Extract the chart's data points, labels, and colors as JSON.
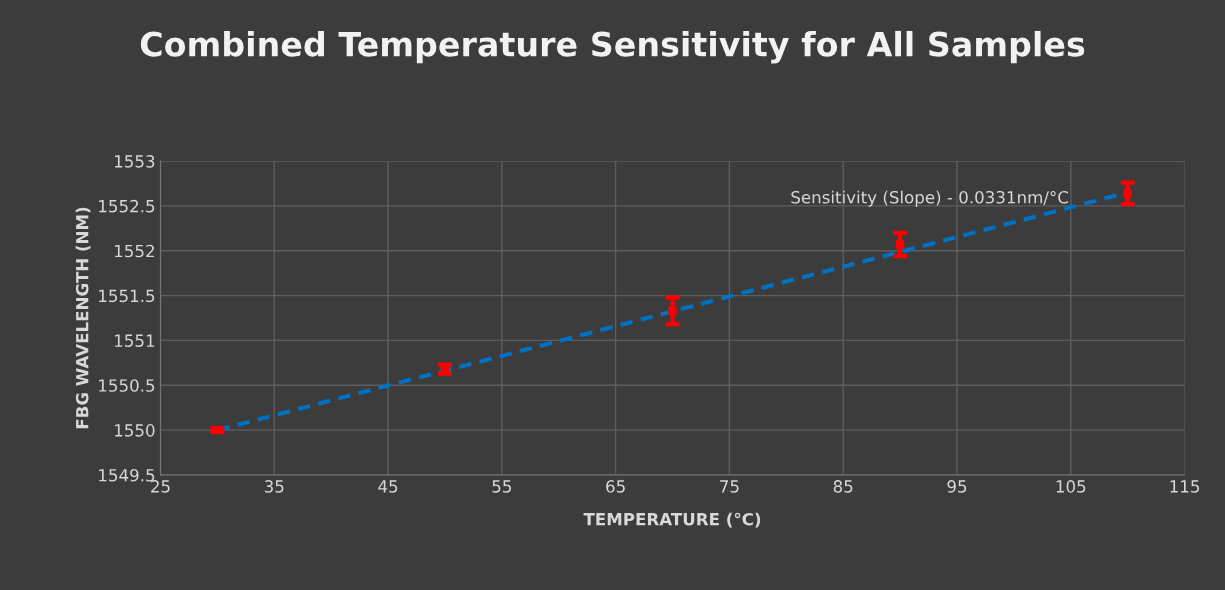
{
  "chart_data": {
    "type": "scatter",
    "title": "Combined Temperature Sensitivity for All Samples",
    "xlabel": "TEMPERATURE (°C)",
    "ylabel": "FBG WAVELENGTH (NM)",
    "annotations": [
      "Sensitivity (Slope) - 0.0331nm/°C"
    ],
    "x": [
      30,
      50,
      70,
      90,
      110
    ],
    "series": [
      {
        "color": "#ff0000",
        "marker": "square",
        "values": [
          1550.0,
          1550.68,
          1551.33,
          1552.07,
          1552.64
        ],
        "errors": [
          0.02,
          0.05,
          0.15,
          0.13,
          0.12
        ]
      },
      {
        "type": "line",
        "color": "#0070c0",
        "line_style": "dashed",
        "x": [
          30,
          110
        ],
        "values": [
          1550.0,
          1552.65
        ]
      }
    ],
    "xlim": [
      25,
      115
    ],
    "xticks": [
      25,
      35,
      45,
      55,
      65,
      75,
      85,
      95,
      105,
      115
    ],
    "ylim": [
      1549.5,
      1553
    ],
    "yticks": [
      1549.5,
      1550,
      1550.5,
      1551,
      1551.5,
      1552,
      1552.5,
      1553
    ],
    "grid": true,
    "legend": false
  }
}
